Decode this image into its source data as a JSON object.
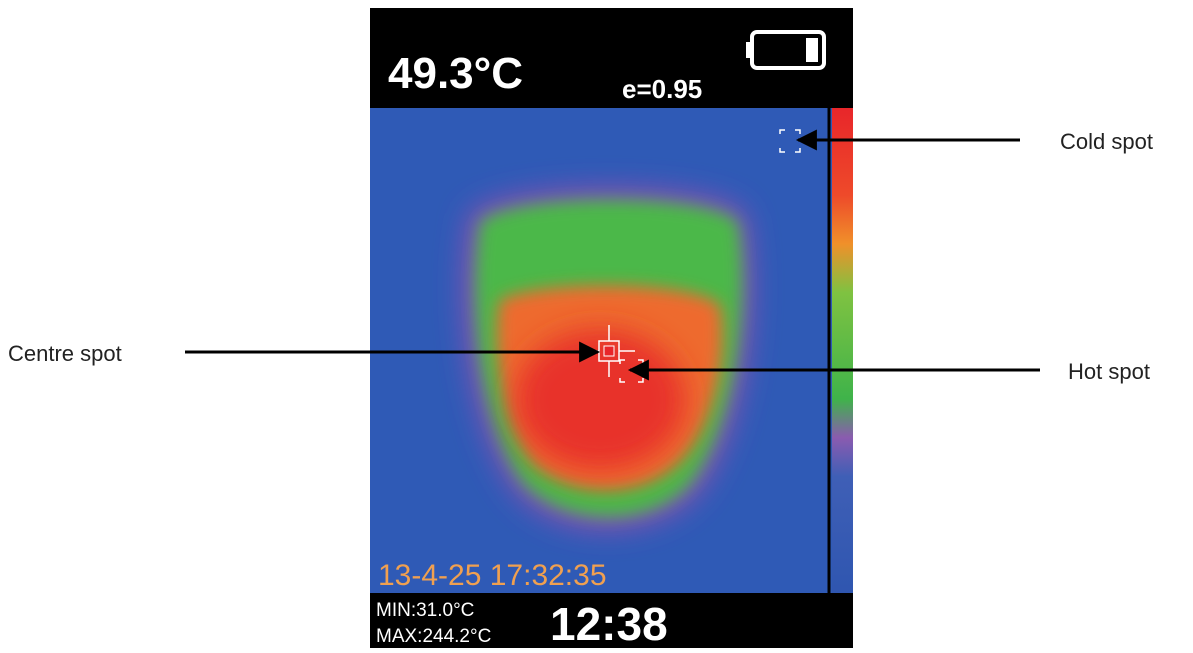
{
  "display": {
    "temperature": "49.3°C",
    "emissivity": "e=0.95",
    "timestamp": "13-4-25 17:32:35",
    "min": "MIN:31.0°C",
    "max": "MAX:244.2°C",
    "clock": "12:38"
  },
  "callouts": {
    "cold": "Cold spot",
    "centre": "Centre spot",
    "hot": "Hot spot"
  }
}
